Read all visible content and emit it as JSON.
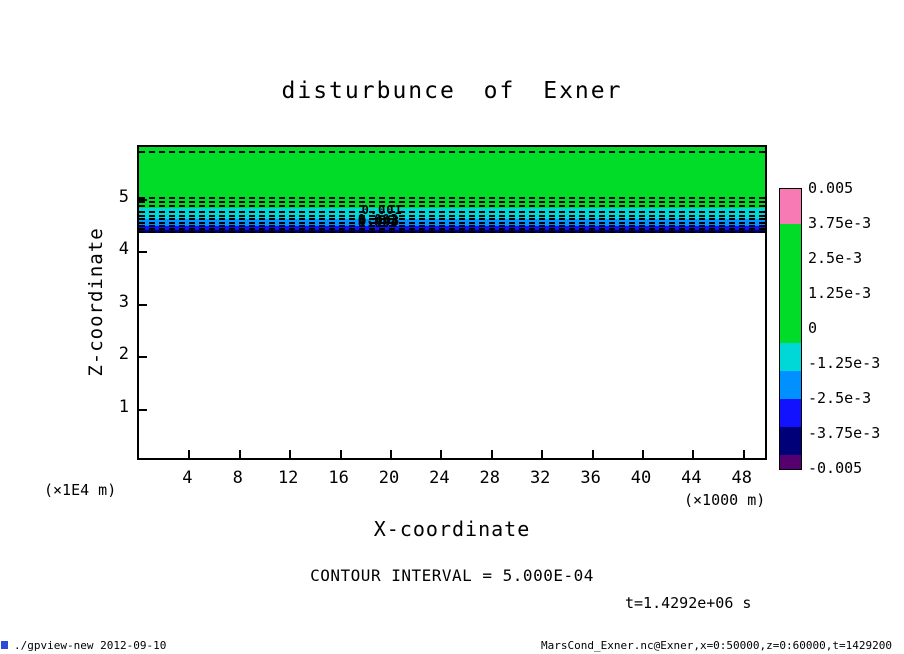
{
  "title": "disturbunce of Exner",
  "axes": {
    "x": {
      "label": "X-coordinate",
      "unit": "(×1000 m)",
      "ticks": [
        4,
        8,
        12,
        16,
        20,
        24,
        28,
        32,
        36,
        40,
        44,
        48
      ],
      "range": [
        0,
        50
      ]
    },
    "z": {
      "label": "Z-coordinate",
      "unit": "(×1E4 m)",
      "ticks": [
        1,
        2,
        3,
        4,
        5
      ],
      "range": [
        0,
        6
      ]
    }
  },
  "colorbar": {
    "vmax": 0.005,
    "vmin": -0.005,
    "labels": [
      "0.005",
      "3.75e-3",
      "2.5e-3",
      "1.25e-3",
      "0",
      "-1.25e-3",
      "-2.5e-3",
      "-3.75e-3",
      "-0.005"
    ],
    "segments": [
      {
        "from": 0.005,
        "to": 0.00375,
        "color": "#f87ab4"
      },
      {
        "from": 0.00375,
        "to": -0.0005,
        "color": "#00dc28"
      },
      {
        "from": -0.0005,
        "to": -0.0015,
        "color": "#00d8d8"
      },
      {
        "from": -0.0015,
        "to": -0.0025,
        "color": "#0090ff"
      },
      {
        "from": -0.0025,
        "to": -0.0035,
        "color": "#1212ff"
      },
      {
        "from": -0.0035,
        "to": -0.0045,
        "color": "#000078"
      },
      {
        "from": -0.0045,
        "to": -0.005,
        "color": "#560070"
      }
    ]
  },
  "annotations": {
    "contour_interval": "CONTOUR INTERVAL = 5.000E-04",
    "time": "t=1.4292e+06 s"
  },
  "footer": {
    "left": "./gpview-new  2012-09-10",
    "right": "MarsCond_Exner.nc@Exner,x=0:50000,z=0:60000,t=1429200"
  },
  "chart_data": {
    "type": "heatmap",
    "title": "disturbunce of Exner",
    "xlabel": "X-coordinate (×1000 m)",
    "ylabel": "Z-coordinate (×1E4 m)",
    "xlim": [
      0,
      50
    ],
    "ylim": [
      0,
      6
    ],
    "contour_interval": 0.0005,
    "time": "t=1.4292e+06 s",
    "bands": [
      {
        "z_from": 4.83,
        "z_to": 6.0,
        "value": "≈0 to +1.25e-3",
        "color": "#00dc28"
      },
      {
        "z_from": 4.62,
        "z_to": 4.83,
        "value": "≈-0.001",
        "color": "#00d8d8"
      },
      {
        "z_from": 4.5,
        "z_to": 4.62,
        "value": "≈-0.002",
        "color": "#0090ff"
      },
      {
        "z_from": 4.42,
        "z_to": 4.5,
        "value": "≈-0.003",
        "color": "#1212ff"
      },
      {
        "z_from": 4.37,
        "z_to": 4.42,
        "value": "≈-0.004",
        "color": "#000070"
      },
      {
        "z_from": 0.0,
        "z_to": 4.37,
        "value": "≈0",
        "color": "#ffffff"
      }
    ],
    "dashed_contours_z": [
      5.93,
      5.05,
      4.97,
      4.9,
      4.78,
      4.71,
      4.65,
      4.58,
      4.52,
      4.46,
      4.4
    ],
    "contour_labels": [
      {
        "text": "0.001",
        "x": 19.3,
        "z": 4.8
      },
      {
        "text": "0.002",
        "x": 19.0,
        "z": 4.63
      },
      {
        "text": "0.003",
        "x": 19.1,
        "z": 4.59
      },
      {
        "text": "0.004",
        "x": 19.0,
        "z": 4.56
      }
    ]
  }
}
